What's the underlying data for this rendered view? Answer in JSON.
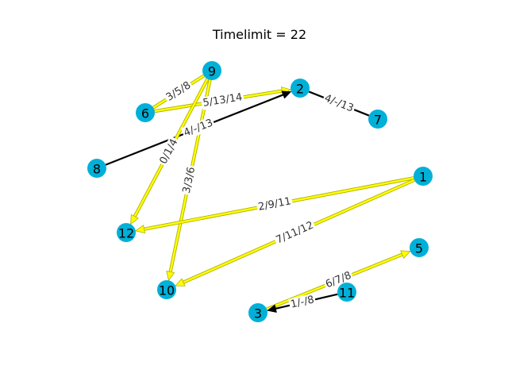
{
  "title": "Timelimit = 22",
  "colors": {
    "node": "#00b0d8",
    "highlight_edge": "#ffff00",
    "highlight_outline": "#b0b000",
    "normal_edge": "#000000"
  },
  "nodes": [
    {
      "id": "1"
    },
    {
      "id": "2"
    },
    {
      "id": "3"
    },
    {
      "id": "5"
    },
    {
      "id": "6"
    },
    {
      "id": "7"
    },
    {
      "id": "8"
    },
    {
      "id": "9"
    },
    {
      "id": "10"
    },
    {
      "id": "11"
    },
    {
      "id": "12"
    }
  ],
  "edges": [
    {
      "from": "6",
      "to": "9",
      "label": "3/5/8",
      "highlight": true,
      "arrow": false
    },
    {
      "from": "6",
      "to": "2",
      "label": "5/13/14",
      "highlight": true,
      "arrow": true
    },
    {
      "from": "8",
      "to": "2",
      "label": "4/-/13",
      "highlight": false,
      "arrow": true
    },
    {
      "from": "2",
      "to": "7",
      "label": "4/-/13",
      "highlight": false,
      "arrow": false
    },
    {
      "from": "9",
      "to": "12",
      "label": "0/1/4",
      "highlight": true,
      "arrow": true
    },
    {
      "from": "9",
      "to": "10",
      "label": "3/3/6",
      "highlight": true,
      "arrow": true
    },
    {
      "from": "1",
      "to": "12",
      "label": "2/9/11",
      "highlight": true,
      "arrow": true
    },
    {
      "from": "1",
      "to": "10",
      "label": "7/11/12",
      "highlight": true,
      "arrow": true
    },
    {
      "from": "3",
      "to": "5",
      "label": "6/7/8",
      "highlight": true,
      "arrow": true
    },
    {
      "from": "11",
      "to": "3",
      "label": "1/-/8",
      "highlight": false,
      "arrow": true
    }
  ]
}
